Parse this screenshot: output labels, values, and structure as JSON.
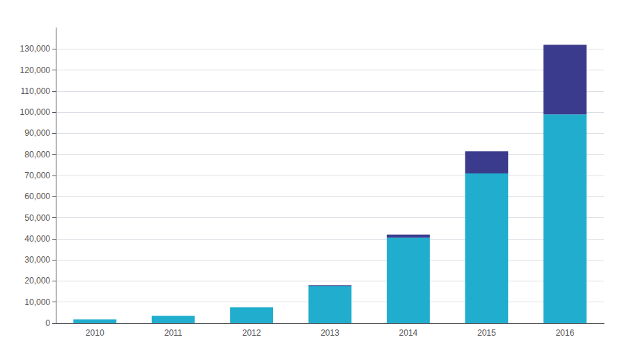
{
  "chart_data": {
    "type": "bar",
    "stacked": true,
    "grid": true,
    "categories": [
      "2010",
      "2011",
      "2012",
      "2013",
      "2014",
      "2015",
      "2016"
    ],
    "series": [
      {
        "color": "#21AECE",
        "values": [
          1800,
          3500,
          7500,
          17500,
          40500,
          71000,
          99000
        ]
      },
      {
        "color": "#3B3B8E",
        "values": [
          0,
          0,
          0,
          500,
          1500,
          10500,
          33000
        ]
      }
    ],
    "ylim": [
      0,
      140000
    ],
    "yticks": [
      0,
      {
        "value": 10000,
        "label": "10,000"
      },
      {
        "value": 20000,
        "label": "20,000"
      },
      {
        "value": 30000,
        "label": "30,000"
      },
      {
        "value": 40000,
        "label": "40,000"
      },
      {
        "value": 50000,
        "label": "50,000"
      },
      {
        "value": 60000,
        "label": "60,000"
      },
      {
        "value": 70000,
        "label": "70,000"
      },
      {
        "value": 80000,
        "label": "80,000"
      },
      {
        "value": 90000,
        "label": "90,000"
      },
      {
        "value": 100000,
        "label": "100,000"
      },
      {
        "value": 110000,
        "label": "110,000"
      },
      {
        "value": 120000,
        "label": "120,000"
      },
      {
        "value": 130000,
        "label": "130,000"
      }
    ]
  }
}
